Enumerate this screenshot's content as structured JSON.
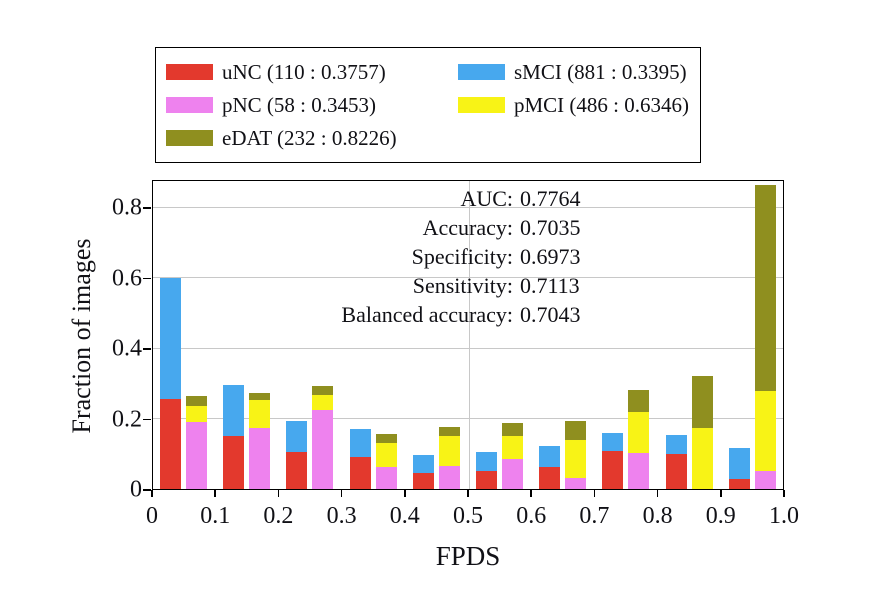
{
  "figure": {
    "background": "#ffffff",
    "text_color": "#111116",
    "axis_color": "#000000",
    "grid_color": "#c8c8c8",
    "legend": {
      "items": [
        {
          "name": "uNC",
          "label": "uNC (110 : 0.3757)",
          "color": "#e3392d"
        },
        {
          "name": "sMCI",
          "label": "sMCI (881 : 0.3395)",
          "color": "#47a8ee"
        },
        {
          "name": "pNC",
          "label": "pNC (58 : 0.3453)",
          "color": "#ee82ee"
        },
        {
          "name": "pMCI",
          "label": "pMCI (486 : 0.6346)",
          "color": "#f8f316"
        },
        {
          "name": "eDAT",
          "label": "eDAT (232 : 0.8226)",
          "color": "#8f8f1f"
        }
      ]
    },
    "stats": [
      {
        "label": "AUC:",
        "value": "0.7764"
      },
      {
        "label": "Accuracy:",
        "value": "0.7035"
      },
      {
        "label": "Specificity:",
        "value": "0.6973"
      },
      {
        "label": "Sensitivity:",
        "value": "0.7113"
      },
      {
        "label": "Balanced accuracy:",
        "value": "0.7043"
      }
    ]
  },
  "chart_data": {
    "type": "bar",
    "stacked": true,
    "title": "",
    "xlabel": "FPDS",
    "ylabel": "Fraction of images",
    "xlim": [
      0,
      1.0
    ],
    "ylim": [
      0,
      0.88
    ],
    "grid": true,
    "legend_position": "top",
    "x_tick_labels": [
      "0",
      "0.1",
      "0.2",
      "0.3",
      "0.4",
      "0.5",
      "0.6",
      "0.7",
      "0.8",
      "0.9",
      "1.0"
    ],
    "x_tick_values": [
      0,
      0.1,
      0.2,
      0.3,
      0.4,
      0.5,
      0.6,
      0.7,
      0.8,
      0.9,
      1.0
    ],
    "y_tick_labels": [
      "0",
      "0.2",
      "0.4",
      "0.6",
      "0.8"
    ],
    "y_tick_values": [
      0,
      0.2,
      0.4,
      0.6,
      0.8
    ],
    "y_gridlines": [
      0.2,
      0.4,
      0.6,
      0.8
    ],
    "x_gridlines": [
      0.5
    ],
    "bin_edges": [
      0,
      0.1,
      0.2,
      0.3,
      0.4,
      0.5,
      0.6,
      0.7,
      0.8,
      0.9,
      1.0
    ],
    "stacks": [
      {
        "name": "stable-stack",
        "series": [
          {
            "name": "uNC",
            "color": "#e3392d",
            "values": [
              0.255,
              0.15,
              0.105,
              0.09,
              0.045,
              0.052,
              0.062,
              0.108,
              0.1,
              0.028
            ]
          },
          {
            "name": "sMCI",
            "color": "#47a8ee",
            "values": [
              0.345,
              0.145,
              0.087,
              0.08,
              0.053,
              0.053,
              0.06,
              0.05,
              0.053,
              0.088
            ]
          }
        ]
      },
      {
        "name": "progressive-stack",
        "series": [
          {
            "name": "pNC",
            "color": "#ee82ee",
            "values": [
              0.19,
              0.172,
              0.225,
              0.062,
              0.065,
              0.086,
              0.031,
              0.102,
              0.0,
              0.051
            ]
          },
          {
            "name": "pMCI",
            "color": "#f8f316",
            "values": [
              0.045,
              0.08,
              0.043,
              0.068,
              0.085,
              0.064,
              0.108,
              0.118,
              0.172,
              0.227
            ]
          },
          {
            "name": "eDAT",
            "color": "#8f8f1f",
            "values": [
              0.03,
              0.02,
              0.024,
              0.025,
              0.025,
              0.038,
              0.053,
              0.062,
              0.15,
              0.585
            ]
          }
        ]
      }
    ]
  }
}
